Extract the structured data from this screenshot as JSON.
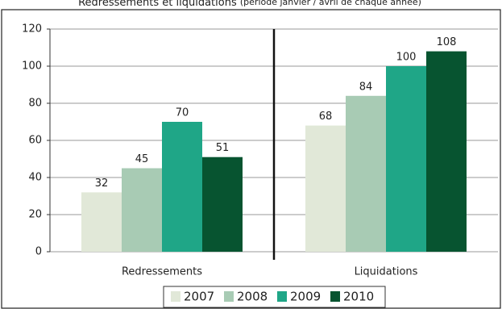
{
  "chart_data": {
    "type": "bar",
    "title": "Redressements et liquidations",
    "subtitle": "(période janvier / avril de chaque année)",
    "categories": [
      "Redressements",
      "Liquidations"
    ],
    "series": [
      {
        "name": "2007",
        "color": "#e1e8d8",
        "values": [
          32,
          68
        ]
      },
      {
        "name": "2008",
        "color": "#a8cbb4",
        "values": [
          45,
          84
        ]
      },
      {
        "name": "2009",
        "color": "#1fa687",
        "values": [
          70,
          100
        ]
      },
      {
        "name": "2010",
        "color": "#075430",
        "values": [
          51,
          108
        ]
      }
    ],
    "ylim": [
      0,
      120
    ],
    "yticks": [
      0,
      20,
      40,
      60,
      80,
      100,
      120
    ],
    "grid": true,
    "legend": "bottom"
  }
}
